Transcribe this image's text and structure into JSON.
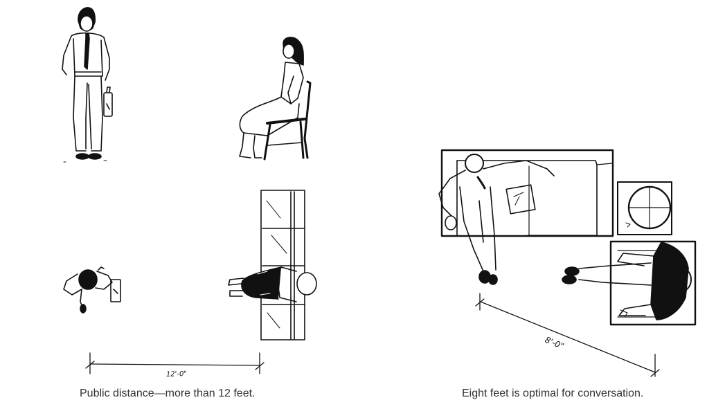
{
  "captions": {
    "left": "Public distance—more than 12 feet.",
    "right": "Eight feet is optimal for conversation."
  },
  "dimensions": {
    "left": "12'-0\"",
    "right": "8'-0\""
  },
  "colors": {
    "ink": "#111111",
    "caption": "#333333",
    "paper": "#ffffff"
  }
}
